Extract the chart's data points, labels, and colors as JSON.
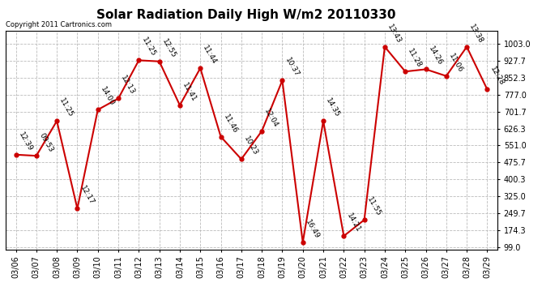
{
  "title": "Solar Radiation Daily High W/m2 20110330",
  "copyright": "Copyright 2011 Cartronics.com",
  "dates": [
    "03/06",
    "03/07",
    "03/08",
    "03/09",
    "03/10",
    "03/11",
    "03/12",
    "03/13",
    "03/14",
    "03/15",
    "03/16",
    "03/17",
    "03/18",
    "03/19",
    "03/20",
    "03/21",
    "03/22",
    "03/23",
    "03/24",
    "03/25",
    "03/26",
    "03/27",
    "03/28",
    "03/29"
  ],
  "values": [
    510,
    505,
    660,
    270,
    710,
    760,
    930,
    925,
    730,
    895,
    590,
    490,
    615,
    840,
    120,
    660,
    148,
    220,
    990,
    880,
    890,
    860,
    990,
    800
  ],
  "times": [
    "12:39",
    "09:53",
    "11:25",
    "12:17",
    "14:00",
    "12:13",
    "11:25",
    "12:55",
    "11:41",
    "11:44",
    "11:46",
    "10:23",
    "12:04",
    "10:37",
    "16:49",
    "14:35",
    "14:21",
    "11:55",
    "13:43",
    "11:28",
    "14:26",
    "11:06",
    "13:38",
    "12:28"
  ],
  "yticks": [
    99.0,
    174.3,
    249.7,
    325.0,
    400.3,
    475.7,
    551.0,
    626.3,
    701.7,
    777.0,
    852.3,
    927.7,
    1003.0
  ],
  "ymin": 99.0,
  "ymax": 1003.0,
  "line_color": "#cc0000",
  "marker_color": "#cc0000",
  "bg_color": "#ffffff",
  "grid_color": "#bbbbbb",
  "title_fontsize": 11,
  "tick_fontsize": 7,
  "annot_fontsize": 6.5,
  "copyright_fontsize": 6
}
